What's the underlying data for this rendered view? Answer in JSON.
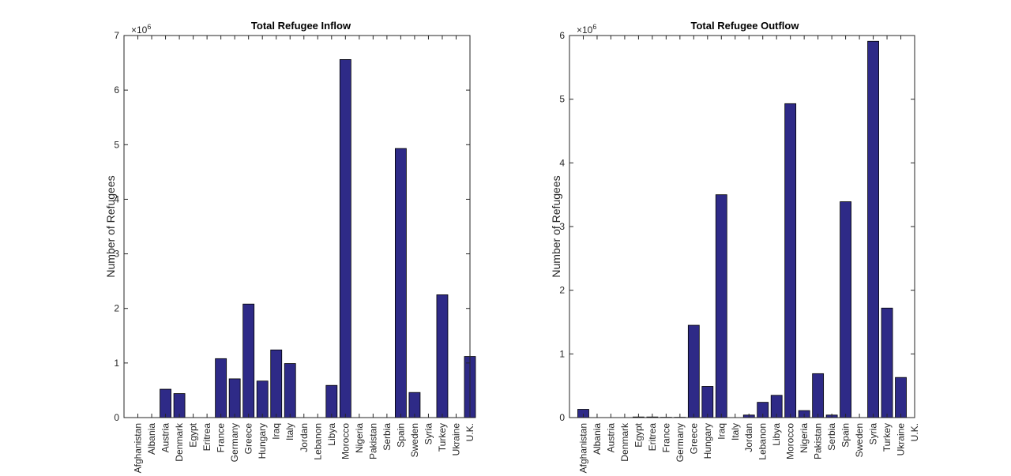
{
  "chart_data": [
    {
      "type": "bar",
      "title": "Total Refugee Inflow",
      "xlabel": "",
      "ylabel": "Number of Refugees",
      "y_exponent_label": "×10",
      "y_exponent": "6",
      "ylim": [
        0,
        7000000
      ],
      "yticks": [
        0,
        1000000,
        2000000,
        3000000,
        4000000,
        5000000,
        6000000,
        7000000
      ],
      "ytick_labels": [
        "0",
        "1",
        "2",
        "3",
        "4",
        "5",
        "6",
        "7"
      ],
      "xlim": [
        0,
        25
      ],
      "categories": [
        "Afghanistan",
        "Albania",
        "Austria",
        "Denmark",
        "Egypt",
        "Eritrea",
        "France",
        "Germany",
        "Greece",
        "Hungary",
        "Iraq",
        "Italy",
        "Jordan",
        "Lebanon",
        "Libya",
        "Morocco",
        "Nigeria",
        "Pakistan",
        "Serbia",
        "Spain",
        "Sweden",
        "Syria",
        "Turkey",
        "Ukraine",
        "U.K."
      ],
      "values": [
        0,
        0,
        520000,
        440000,
        0,
        0,
        1080000,
        710000,
        2080000,
        670000,
        1240000,
        990000,
        0,
        0,
        590000,
        6560000,
        0,
        0,
        0,
        4930000,
        460000,
        0,
        2250000,
        0,
        1120000
      ]
    },
    {
      "type": "bar",
      "title": "Total Refugee Outflow",
      "xlabel": "",
      "ylabel": "Number of Refugees",
      "y_exponent_label": "×10",
      "y_exponent": "6",
      "ylim": [
        0,
        6000000
      ],
      "yticks": [
        0,
        1000000,
        2000000,
        3000000,
        4000000,
        5000000,
        6000000
      ],
      "ytick_labels": [
        "0",
        "1",
        "2",
        "3",
        "4",
        "5",
        "6"
      ],
      "xlim": [
        0,
        25
      ],
      "categories": [
        "Afghanistan",
        "Albania",
        "Austria",
        "Denmark",
        "Egypt",
        "Eritrea",
        "France",
        "Germany",
        "Greece",
        "Hungary",
        "Iraq",
        "Italy",
        "Jordan",
        "Lebanon",
        "Libya",
        "Morocco",
        "Nigeria",
        "Pakistan",
        "Serbia",
        "Spain",
        "Sweden",
        "Syria",
        "Turkey",
        "Ukraine",
        "U.K."
      ],
      "values": [
        130000,
        0,
        0,
        0,
        10000,
        10000,
        5000,
        5000,
        1450000,
        490000,
        3500000,
        0,
        40000,
        240000,
        350000,
        4930000,
        110000,
        690000,
        40000,
        3390000,
        0,
        5910000,
        1720000,
        630000,
        0
      ]
    }
  ],
  "style": {
    "bar_color": "#2e2a87",
    "bar_edge": "#000000",
    "axis_color": "#262626"
  }
}
